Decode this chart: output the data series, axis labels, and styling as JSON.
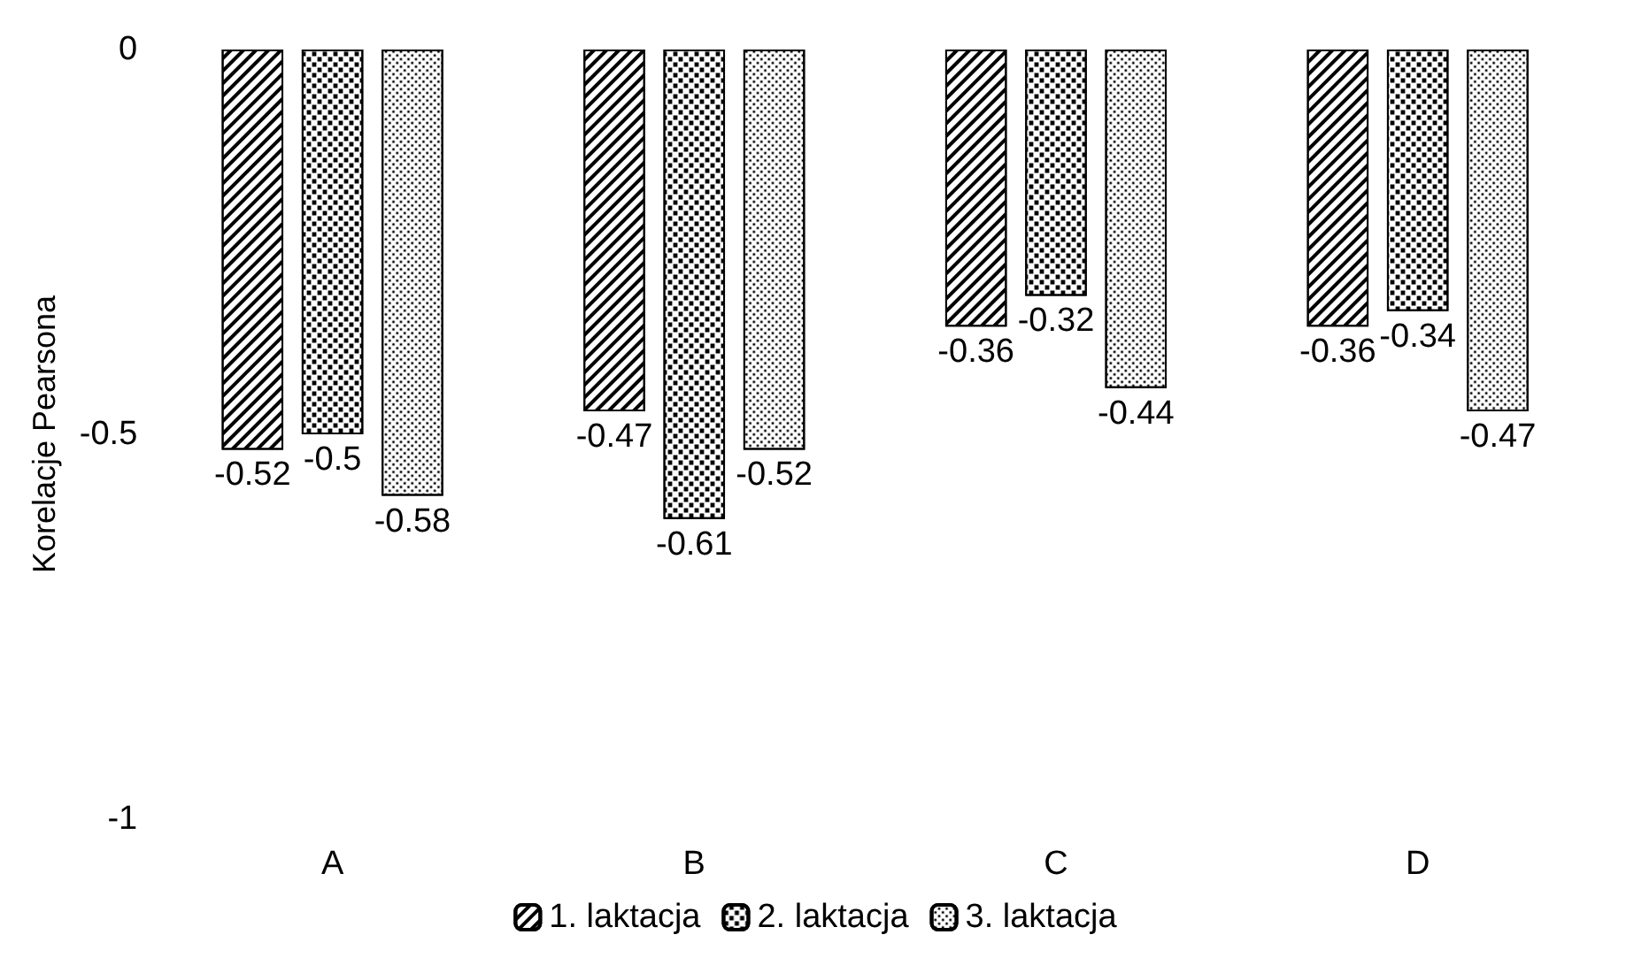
{
  "chart_data": {
    "type": "bar",
    "ylabel": "Korelacje Pearsona",
    "categories": [
      "A",
      "B",
      "C",
      "D"
    ],
    "series": [
      {
        "name": "1. laktacja",
        "color": "#ffffff",
        "values": [
          -0.52,
          -0.47,
          -0.36,
          -0.36
        ]
      },
      {
        "name": "2. laktacja",
        "color": "#ffffff",
        "values": [
          -0.5,
          -0.61,
          -0.32,
          -0.34
        ]
      },
      {
        "name": "3. laktacja",
        "color": "#ffffff",
        "values": [
          -0.58,
          -0.52,
          -0.44,
          -0.47
        ]
      }
    ],
    "ylim": [
      -1,
      0
    ],
    "yticks": [
      0,
      -0.5,
      -1
    ],
    "grid": false,
    "legend": "bottom",
    "data_labels": true
  }
}
